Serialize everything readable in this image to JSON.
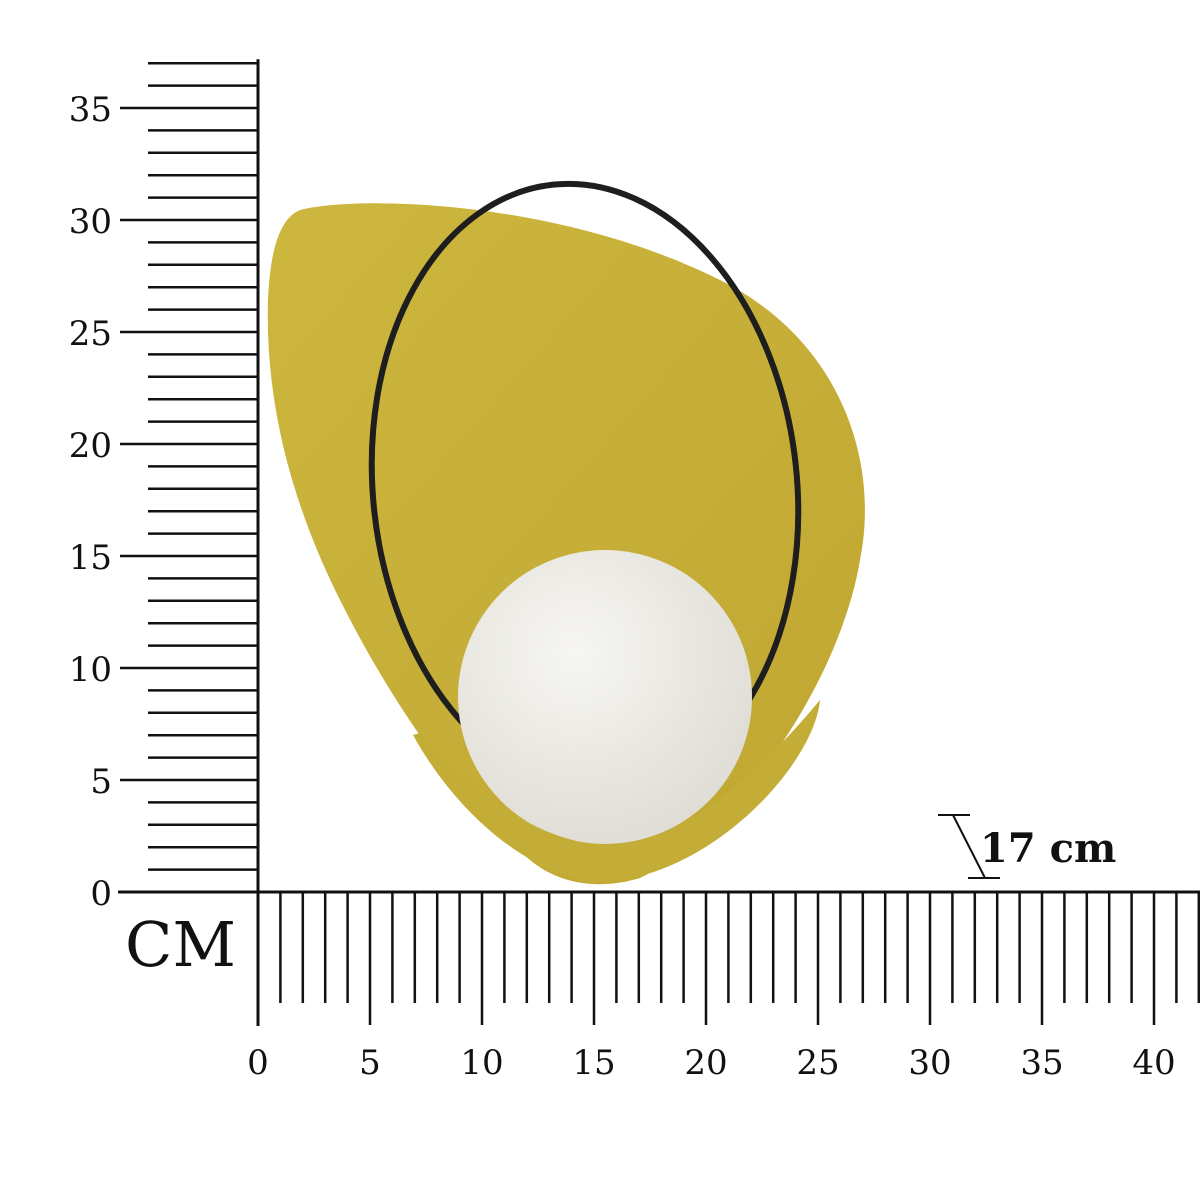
{
  "unit_label": "CM",
  "dimension_label": "17 cm",
  "vertical_ruler": {
    "min": 0,
    "max": 37,
    "major_step": 5,
    "labels": [
      "0",
      "5",
      "10",
      "15",
      "20",
      "25",
      "30",
      "35"
    ]
  },
  "horizontal_ruler": {
    "min": 0,
    "max": 42,
    "major_step": 5,
    "labels": [
      "0",
      "5",
      "10",
      "15",
      "20",
      "25",
      "30",
      "35",
      "40"
    ]
  },
  "colors": {
    "shade": "#c8b23c",
    "shade_dark": "#b39a28",
    "wire": "#1e1e1e",
    "globe": "#efeeea",
    "ruler": "#111111"
  }
}
